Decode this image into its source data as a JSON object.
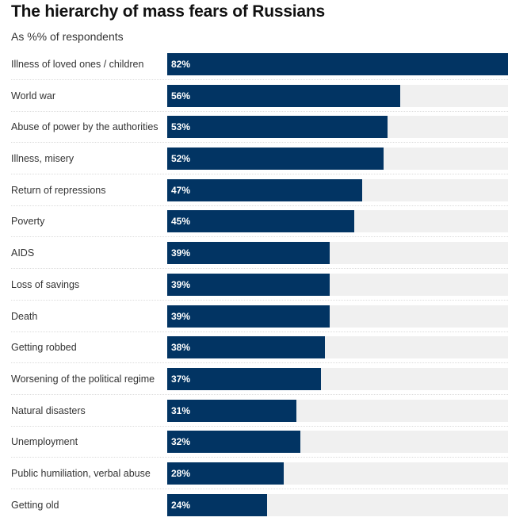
{
  "chart_data": {
    "type": "bar",
    "orientation": "horizontal",
    "title": "The hierarchy of mass fears of Russians",
    "subtitle": "As %% of respondents",
    "xlabel": "",
    "ylabel": "",
    "xlim": [
      0,
      82
    ],
    "grid": false,
    "legend": "none",
    "bar_color": "#023463",
    "track_color": "#f0f0f0",
    "categories": [
      "Illness of loved ones / children",
      "World war",
      "Abuse of power by the authorities",
      "Illness, misery",
      "Return of repressions",
      "Poverty",
      "AIDS",
      "Loss of savings",
      "Death",
      "Getting robbed",
      "Worsening of the political regime",
      "Natural disasters",
      "Unemployment",
      "Public humiliation, verbal abuse",
      "Getting old"
    ],
    "values": [
      82,
      56,
      53,
      52,
      47,
      45,
      39,
      39,
      39,
      38,
      37,
      31,
      32,
      28,
      24
    ],
    "value_labels": [
      "82%",
      "56%",
      "53%",
      "52%",
      "47%",
      "45%",
      "39%",
      "39%",
      "39%",
      "38%",
      "37%",
      "31%",
      "32%",
      "28%",
      "24%"
    ]
  }
}
